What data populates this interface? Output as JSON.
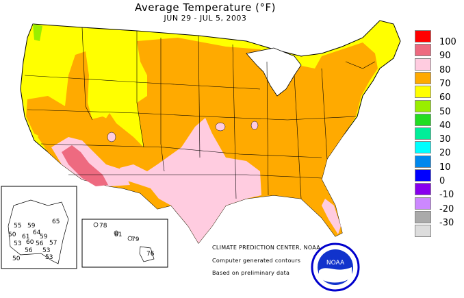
{
  "title": "Average Temperature (°F)",
  "subtitle": "JUN 29 - JUL  5, 2003",
  "legend": [
    {
      "label": "100",
      "color": "#ff0000"
    },
    {
      "label": "90",
      "color": "#ee6a80"
    },
    {
      "label": "80",
      "color": "#ffcce0"
    },
    {
      "label": "70",
      "color": "#ffaa00"
    },
    {
      "label": "60",
      "color": "#ffff00"
    },
    {
      "label": "50",
      "color": "#99ee00"
    },
    {
      "label": "40",
      "color": "#22dd22"
    },
    {
      "label": "30",
      "color": "#00ee99"
    },
    {
      "label": "20",
      "color": "#00ffff"
    },
    {
      "label": "10",
      "color": "#0088ee"
    },
    {
      "label": "0",
      "color": "#0000ff"
    },
    {
      "label": "-10",
      "color": "#8800ee"
    },
    {
      "label": "-20",
      "color": "#cc88ff"
    },
    {
      "label": "-30",
      "color": "#aaaaaa"
    },
    {
      "label": "",
      "color": "#dddddd"
    }
  ],
  "credits": {
    "center": "CLIMATE PREDICTION CENTER, NOAA",
    "line1": "Computer generated contours",
    "line2": "Based on preliminary data"
  },
  "logo_text": "NOAA",
  "alaska_values": [
    "55",
    "59",
    "65",
    "50",
    "61",
    "64",
    "59",
    "53",
    "60",
    "56",
    "57",
    "56",
    "53",
    "50",
    "53"
  ],
  "hawaii_values": [
    "78",
    "81",
    "79",
    "76"
  ]
}
